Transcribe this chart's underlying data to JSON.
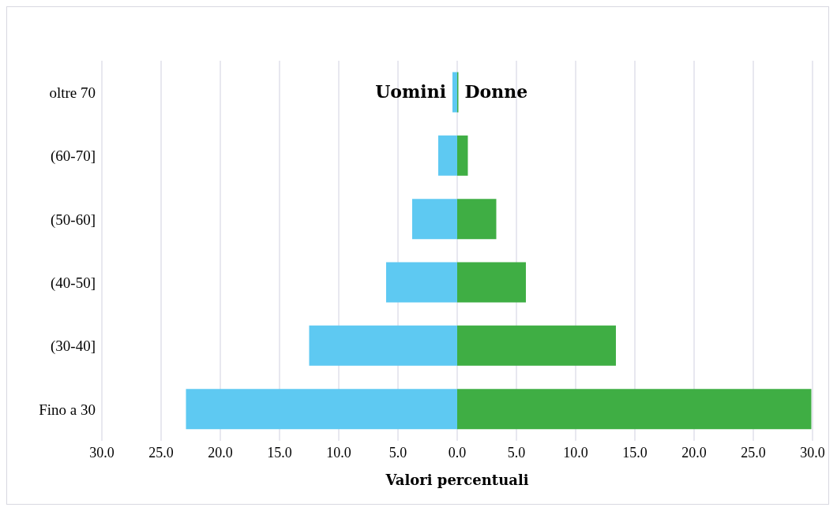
{
  "chart_data": {
    "type": "bar",
    "orientation": "horizontal",
    "stacked": true,
    "xlabel": "Valori percentuali",
    "categories": [
      "oltre 70",
      "(60-70]",
      "(50-60]",
      "(40-50]",
      "(30-40]",
      "Fino a 30"
    ],
    "series": [
      {
        "name": "Uomini",
        "color": "#5ec9f2",
        "values": [
          -0.4,
          -1.6,
          -3.8,
          -6.0,
          -12.5,
          -22.9
        ]
      },
      {
        "name": "Donne",
        "color": "#3fae44",
        "values": [
          0.1,
          0.9,
          3.3,
          5.8,
          13.4,
          29.9
        ]
      }
    ],
    "xlim": [
      -30,
      30
    ],
    "xticks": [
      {
        "value": -30,
        "label": "30.0"
      },
      {
        "value": -25,
        "label": "25.0"
      },
      {
        "value": -20,
        "label": "20.0"
      },
      {
        "value": -15,
        "label": "15.0"
      },
      {
        "value": -10,
        "label": "10.0"
      },
      {
        "value": -5,
        "label": "5.0"
      },
      {
        "value": 0,
        "label": "0.0"
      },
      {
        "value": 5,
        "label": "5.0"
      },
      {
        "value": 10,
        "label": "10.0"
      },
      {
        "value": 15,
        "label": "15.0"
      },
      {
        "value": 20,
        "label": "20.0"
      },
      {
        "value": 25,
        "label": "25.0"
      },
      {
        "value": 30,
        "label": "30.0"
      }
    ],
    "grid": "x",
    "legend": false
  }
}
